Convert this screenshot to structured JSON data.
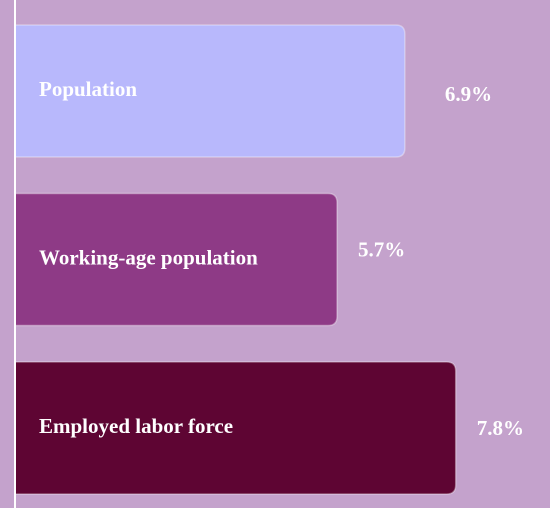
{
  "chart_data": {
    "type": "bar",
    "orientation": "horizontal",
    "categories": [
      "Population",
      "Working-age population",
      "Employed labor force"
    ],
    "values": [
      6.9,
      5.7,
      7.8
    ],
    "value_labels": [
      "6.9%",
      "5.7%",
      "7.8%"
    ],
    "colors": [
      "#b8b8fc",
      "#8e3a86",
      "#5e0533"
    ]
  }
}
